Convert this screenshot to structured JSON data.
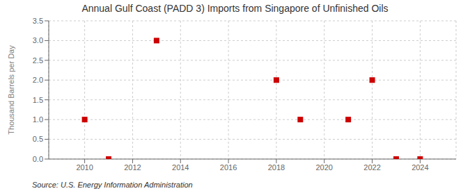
{
  "chart_data": {
    "type": "scatter",
    "title": "Annual Gulf Coast (PADD 3) Imports from Singapore of Unfinished Oils",
    "ylabel": "Thousand Barrels per Day",
    "source": "Source: U.S. Energy Information Administration",
    "x": [
      2010,
      2011,
      2013,
      2018,
      2019,
      2021,
      2022,
      2023,
      2024
    ],
    "values": [
      1.0,
      0.0,
      3.0,
      2.0,
      1.0,
      1.0,
      2.0,
      0.0,
      0.0
    ],
    "color": "#cc0000",
    "marker": "square",
    "xlim": [
      2008.5,
      2025.5
    ],
    "ylim": [
      0.0,
      3.5
    ],
    "xticks": [
      2010,
      2012,
      2014,
      2016,
      2018,
      2020,
      2022,
      2024
    ],
    "yticks": [
      {
        "value": 0.0,
        "label": "0.0"
      },
      0.5,
      {
        "value": 1.0,
        "label": "1.0"
      },
      1.5,
      {
        "value": 2.0,
        "label": "2.0"
      },
      2.5,
      {
        "value": 3.0,
        "label": "3.0"
      },
      3.5
    ],
    "grid": true
  }
}
